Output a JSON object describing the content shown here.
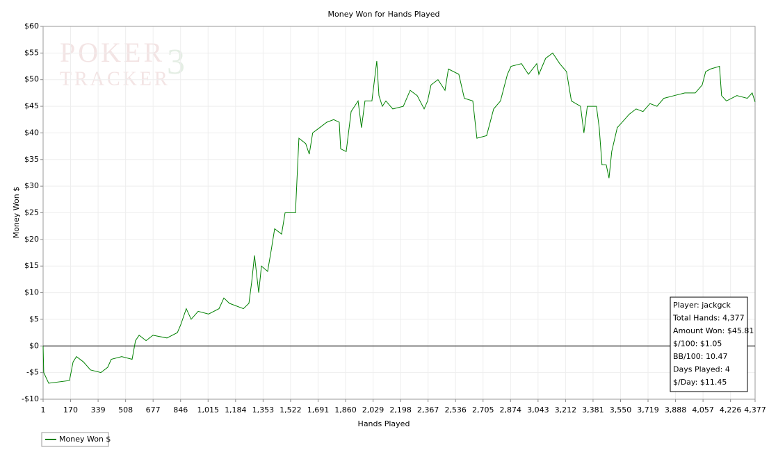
{
  "chart_data": {
    "type": "line",
    "title": "Money Won for Hands Played",
    "x_label": "Hands Played",
    "y_label": "Money Won $",
    "watermark": [
      "POKER",
      "TRACKER",
      "3"
    ],
    "xlim": [
      1,
      4377
    ],
    "ylim": [
      -10,
      60
    ],
    "xticks": [
      1,
      170,
      339,
      508,
      677,
      846,
      {
        "value": 1015,
        "label": "1,015"
      },
      {
        "value": 1184,
        "label": "1,184"
      },
      {
        "value": 1353,
        "label": "1,353"
      },
      {
        "value": 1522,
        "label": "1,522"
      },
      {
        "value": 1691,
        "label": "1,691"
      },
      {
        "value": 1860,
        "label": "1,860"
      },
      {
        "value": 2029,
        "label": "2,029"
      },
      {
        "value": 2198,
        "label": "2,198"
      },
      {
        "value": 2367,
        "label": "2,367"
      },
      {
        "value": 2536,
        "label": "2,536"
      },
      {
        "value": 2705,
        "label": "2,705"
      },
      {
        "value": 2874,
        "label": "2,874"
      },
      {
        "value": 3043,
        "label": "3,043"
      },
      {
        "value": 3212,
        "label": "3,212"
      },
      {
        "value": 3381,
        "label": "3,381"
      },
      {
        "value": 3550,
        "label": "3,550"
      },
      {
        "value": 3719,
        "label": "3,719"
      },
      {
        "value": 3888,
        "label": "3,888"
      },
      {
        "value": 4057,
        "label": "4,057"
      },
      {
        "value": 4226,
        "label": "4,226"
      },
      {
        "value": 4377,
        "label": "4,377"
      }
    ],
    "yticks": [
      {
        "value": -10,
        "label": "-$10"
      },
      {
        "value": -5,
        "label": "-$5"
      },
      {
        "value": 0,
        "label": "$0"
      },
      {
        "value": 5,
        "label": "$5"
      },
      {
        "value": 10,
        "label": "$10"
      },
      {
        "value": 15,
        "label": "$15"
      },
      {
        "value": 20,
        "label": "$20"
      },
      {
        "value": 25,
        "label": "$25"
      },
      {
        "value": 30,
        "label": "$30"
      },
      {
        "value": 35,
        "label": "$35"
      },
      {
        "value": 40,
        "label": "$40"
      },
      {
        "value": 45,
        "label": "$45"
      },
      {
        "value": 50,
        "label": "$50"
      },
      {
        "value": 55,
        "label": "$55"
      },
      {
        "value": 60,
        "label": "$60"
      }
    ],
    "grid": true,
    "x": [
      1,
      5,
      35,
      163,
      185,
      206,
      249,
      292,
      356,
      398,
      420,
      484,
      548,
      569,
      591,
      634,
      676,
      762,
      826,
      847,
      881,
      911,
      954,
      1018,
      1082,
      1112,
      1146,
      1232,
      1266,
      1283,
      1300,
      1326,
      1343,
      1381,
      1403,
      1424,
      1467,
      1488,
      1552,
      1573,
      1615,
      1637,
      1658,
      1701,
      1744,
      1787,
      1821,
      1830,
      1864,
      1894,
      1937,
      1958,
      1979,
      2022,
      2052,
      2065,
      2086,
      2108,
      2150,
      2215,
      2257,
      2300,
      2343,
      2364,
      2385,
      2428,
      2471,
      2492,
      2556,
      2590,
      2642,
      2667,
      2727,
      2770,
      2812,
      2855,
      2877,
      2941,
      2984,
      3035,
      3048,
      3090,
      3133,
      3176,
      3218,
      3248,
      3304,
      3325,
      3346,
      3402,
      3419,
      3436,
      3462,
      3479,
      3496,
      3530,
      3560,
      3603,
      3646,
      3688,
      3731,
      3774,
      3816,
      3880,
      3945,
      4009,
      4052,
      4073,
      4103,
      4158,
      4171,
      4201,
      4265,
      4329,
      4359,
      4377
    ],
    "series": [
      {
        "name": "Money Won $",
        "color": "#008000",
        "values": [
          0,
          -5,
          -7,
          -6.5,
          -3,
          -2,
          -3,
          -4.5,
          -5,
          -4,
          -2.5,
          -2,
          -2.5,
          1,
          2,
          1,
          2,
          1.5,
          2.5,
          4,
          7,
          5,
          6.5,
          6,
          7,
          9,
          8,
          7,
          8,
          12,
          17,
          10,
          15,
          14,
          18,
          22,
          21,
          25,
          25,
          39,
          38,
          36,
          40,
          41,
          42,
          42.5,
          42,
          37,
          36.5,
          44,
          46,
          41,
          46,
          46,
          53.5,
          47,
          45,
          46,
          44.5,
          45,
          48,
          47,
          44.5,
          46,
          49,
          50,
          48,
          52,
          51,
          46.5,
          46,
          39,
          39.5,
          44.5,
          46,
          51,
          52.5,
          53,
          51,
          53,
          51,
          54,
          55,
          53,
          51.5,
          46,
          45,
          40,
          45,
          45,
          41,
          34,
          34,
          31.5,
          36.5,
          41,
          42,
          43.5,
          44.5,
          44,
          45.5,
          45,
          46.5,
          47,
          47.5,
          47.5,
          49,
          51.5,
          52,
          52.5,
          47,
          46,
          47,
          46.5,
          47.5,
          45.81
        ]
      }
    ],
    "annotations": [
      "Player: jackgck",
      "Total Hands: 4,377",
      "Amount Won: $45.81",
      "$/100: $1.05",
      "BB/100: 10.47",
      "Days Played: 4",
      "$/Day: $11.45"
    ],
    "baseline": 0
  }
}
